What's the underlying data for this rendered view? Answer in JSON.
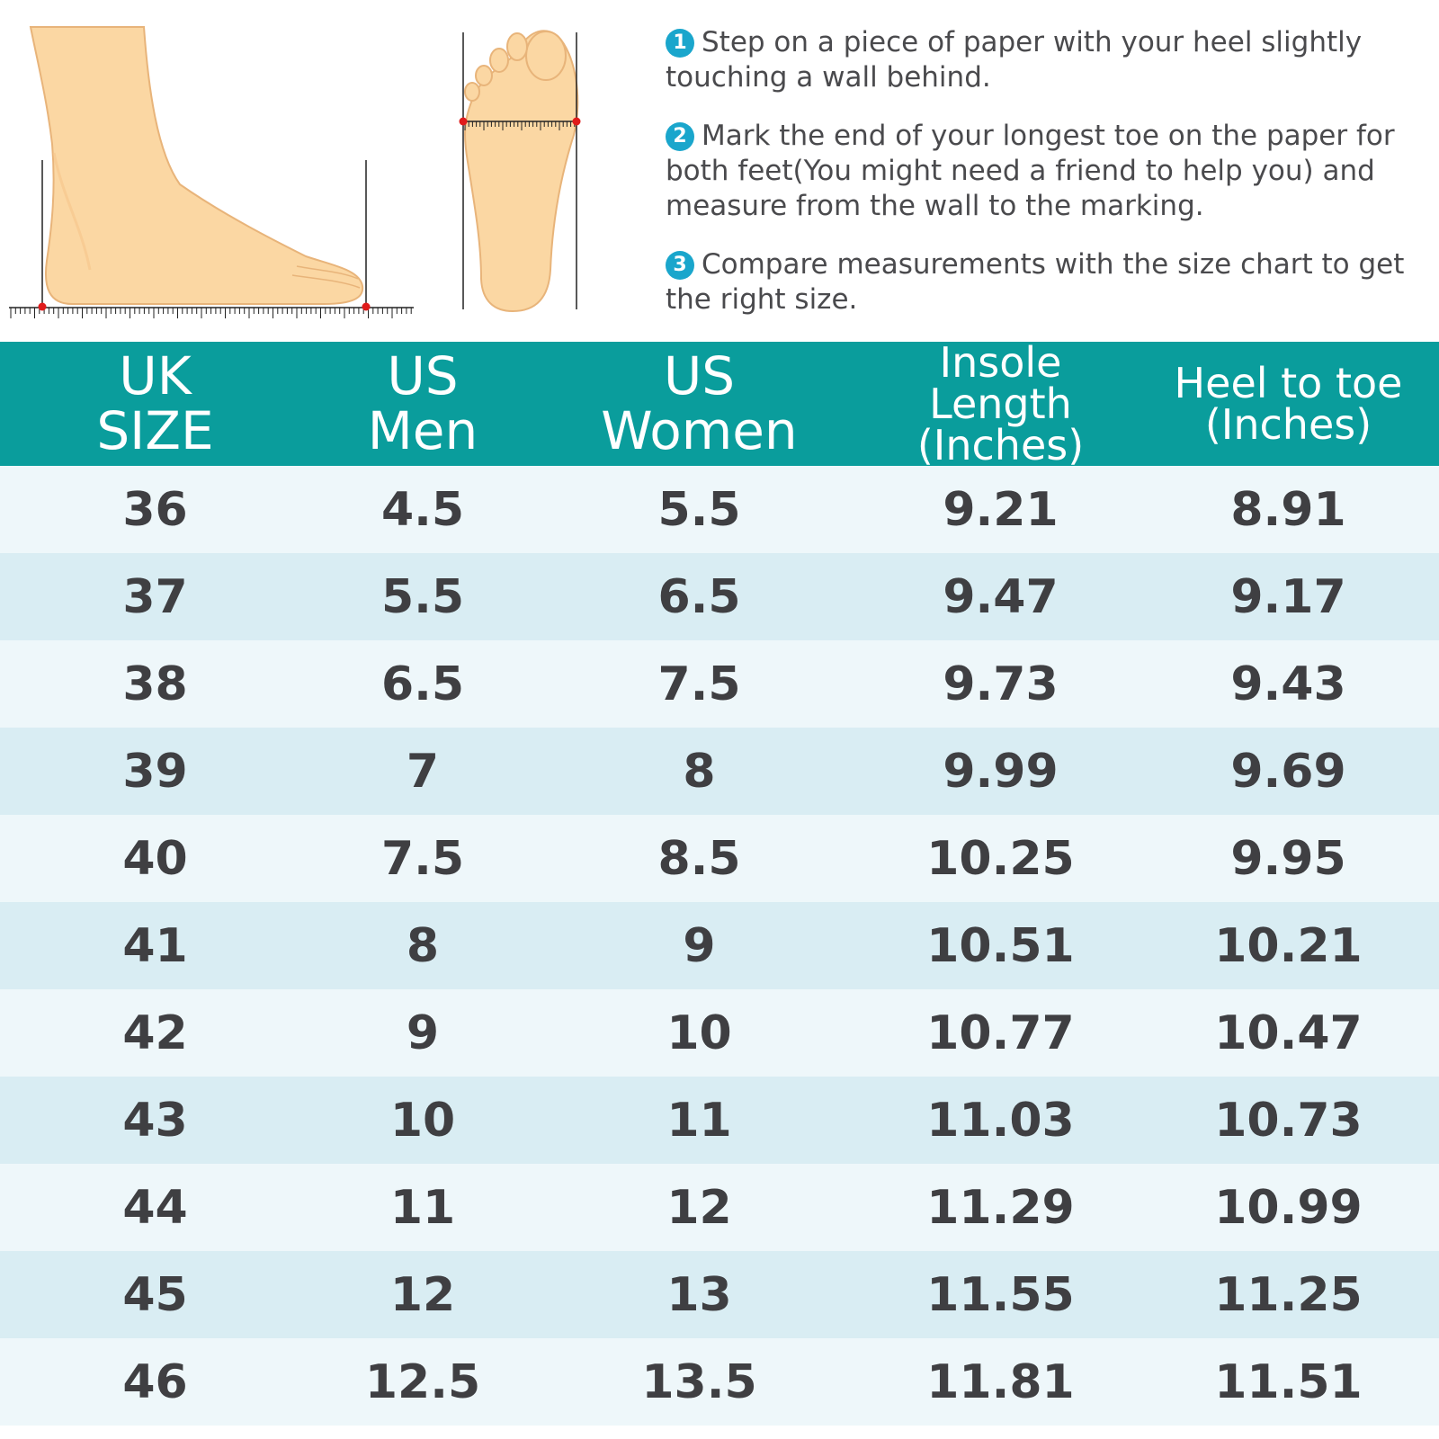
{
  "instructions": {
    "steps": [
      {
        "number": "1",
        "text": "Step on a piece of paper with your heel slightly touching a wall behind."
      },
      {
        "number": "2",
        "text": "Mark the end of your longest toe on the paper for both feet(You might need a friend to help you) and measure from the wall to the marking."
      },
      {
        "number": "3",
        "text": "Compare measurements with the size chart to get the right size."
      }
    ]
  },
  "table": {
    "headers": [
      {
        "line1": "UK",
        "line2": "SIZE"
      },
      {
        "line1": "US",
        "line2": "Men"
      },
      {
        "line1": "US",
        "line2": "Women"
      },
      {
        "line1": "Insole Length",
        "line2": "(Inches)"
      },
      {
        "line1": "Heel to toe",
        "line2": "(Inches)"
      }
    ],
    "rows": [
      [
        "36",
        "4.5",
        "5.5",
        "9.21",
        "8.91"
      ],
      [
        "37",
        "5.5",
        "6.5",
        "9.47",
        "9.17"
      ],
      [
        "38",
        "6.5",
        "7.5",
        "9.73",
        "9.43"
      ],
      [
        "39",
        "7",
        "8",
        "9.99",
        "9.69"
      ],
      [
        "40",
        "7.5",
        "8.5",
        "10.25",
        "9.95"
      ],
      [
        "41",
        "8",
        "9",
        "10.51",
        "10.21"
      ],
      [
        "42",
        "9",
        "10",
        "10.77",
        "10.47"
      ],
      [
        "43",
        "10",
        "11",
        "11.03",
        "10.73"
      ],
      [
        "44",
        "11",
        "12",
        "11.29",
        "10.99"
      ],
      [
        "45",
        "12",
        "13",
        "11.55",
        "11.25"
      ],
      [
        "46",
        "12.5",
        "13.5",
        "11.81",
        "11.51"
      ]
    ]
  },
  "colors": {
    "header_bg": "#0a9d9c",
    "row_light": "#eef7fa",
    "row_dark": "#d9edf3",
    "step_badge": "#1aa6cc",
    "skin": "#fbd7a3",
    "marker": "#e01b1b"
  },
  "icons": [
    "foot-side-view-icon",
    "foot-sole-view-icon",
    "ruler-icon"
  ]
}
